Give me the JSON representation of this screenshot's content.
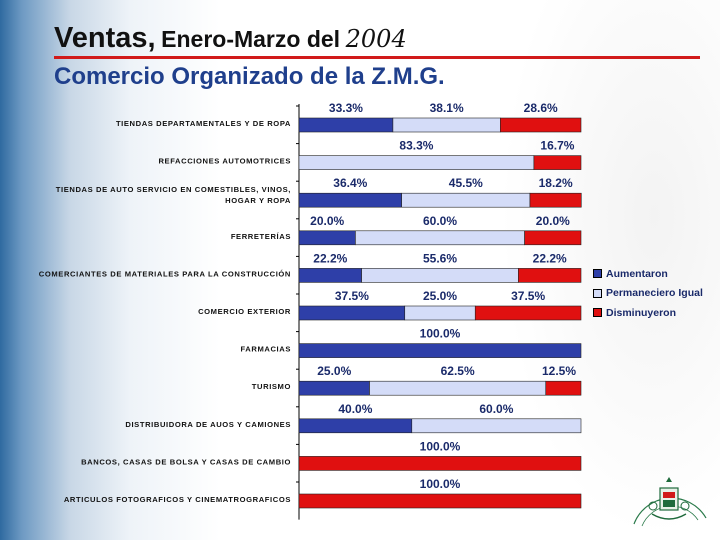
{
  "header": {
    "title_main": "Ventas,",
    "title_range": "Enero-Marzo del",
    "title_year": "2004",
    "subtitle": "Comercio Organizado de la Z.M.G."
  },
  "colors": {
    "aumentaron": "#2e3fa8",
    "permanecio": "#d4dcf8",
    "disminuyeron": "#e01010",
    "title_rule": "#d11a1a",
    "subtitle": "#1f3f8c"
  },
  "legend": [
    {
      "label": "Aumentaron",
      "color": "#2e3fa8"
    },
    {
      "label": "Permaneciero Igual",
      "color": "#d4dcf8"
    },
    {
      "label": "Disminuyeron",
      "color": "#e01010"
    }
  ],
  "chart_data": {
    "type": "bar",
    "orientation": "horizontal",
    "stacked": true,
    "xlim": [
      0,
      100
    ],
    "legend_position": "right",
    "categories": [
      [
        "TIENDAS DEPARTAMENTALES Y DE ROPA"
      ],
      [
        "REFACCIONES AUTOMOTRICES"
      ],
      [
        "TIENDAS DE AUTO SERVICIO EN COMESTIBLES, VINOS,",
        "HOGAR Y ROPA"
      ],
      [
        "FERRETERÍAS"
      ],
      [
        "COMERCIANTES DE MATERIALES PARA LA CONSTRUCCIÓN"
      ],
      [
        "COMERCIO EXTERIOR"
      ],
      [
        "FARMACIAS"
      ],
      [
        "TURISMO"
      ],
      [
        "DISTRIBUIDORA DE AUOS Y CAMIONES"
      ],
      [
        "BANCOS, CASAS DE BOLSA Y CASAS DE CAMBIO"
      ],
      [
        "ARTICULOS FOTOGRAFICOS Y CINEMATROGRAFICOS"
      ]
    ],
    "series": [
      {
        "name": "Aumentaron",
        "values": [
          33.3,
          0,
          36.4,
          20.0,
          22.2,
          37.5,
          100.0,
          25.0,
          40.0,
          0,
          0
        ]
      },
      {
        "name": "Permaneciero Igual",
        "values": [
          38.1,
          83.3,
          45.5,
          60.0,
          55.6,
          25.0,
          0,
          62.5,
          60.0,
          0,
          0
        ]
      },
      {
        "name": "Disminuyeron",
        "values": [
          28.6,
          16.7,
          18.2,
          20.0,
          22.2,
          37.5,
          0,
          12.5,
          0,
          100.0,
          100.0
        ]
      }
    ],
    "data_labels": [
      [
        "33.3%",
        "38.1%",
        "28.6%"
      ],
      [
        "",
        "83.3%",
        "16.7%"
      ],
      [
        "36.4%",
        "45.5%",
        "18.2%"
      ],
      [
        "20.0%",
        "60.0%",
        "20.0%"
      ],
      [
        "22.2%",
        "55.6%",
        "22.2%"
      ],
      [
        "37.5%",
        "25.0%",
        "37.5%"
      ],
      [
        "100.0%",
        "",
        ""
      ],
      [
        "25.0%",
        "62.5%",
        "12.5%"
      ],
      [
        "40.0%",
        "60.0%",
        ""
      ],
      [
        "",
        "",
        "100.0%"
      ],
      [
        "",
        "",
        "100.0%"
      ]
    ]
  }
}
